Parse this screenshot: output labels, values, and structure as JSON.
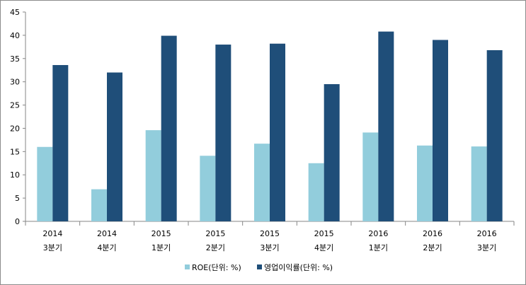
{
  "chart_data": {
    "type": "bar",
    "categories": [
      [
        "2014",
        "3분기"
      ],
      [
        "2014",
        "4분기"
      ],
      [
        "2015",
        "1분기"
      ],
      [
        "2015",
        "2분기"
      ],
      [
        "2015",
        "3분기"
      ],
      [
        "2015",
        "4분기"
      ],
      [
        "2016",
        "1분기"
      ],
      [
        "2016",
        "2분기"
      ],
      [
        "2016",
        "3분기"
      ]
    ],
    "series": [
      {
        "name": "ROE(단위: %)",
        "color": "#92cddc",
        "values": [
          16.0,
          6.9,
          19.6,
          14.1,
          16.7,
          12.5,
          19.1,
          16.3,
          16.1
        ]
      },
      {
        "name": "영업이익률(단위: %)",
        "color": "#1f4e79",
        "values": [
          33.6,
          32.0,
          39.9,
          38.0,
          38.2,
          29.5,
          40.8,
          39.0,
          36.8
        ]
      }
    ],
    "ylim": [
      0,
      45
    ],
    "yticks": [
      0,
      5,
      10,
      15,
      20,
      25,
      30,
      35,
      40,
      45
    ],
    "grid": false,
    "legend": "bottom"
  }
}
